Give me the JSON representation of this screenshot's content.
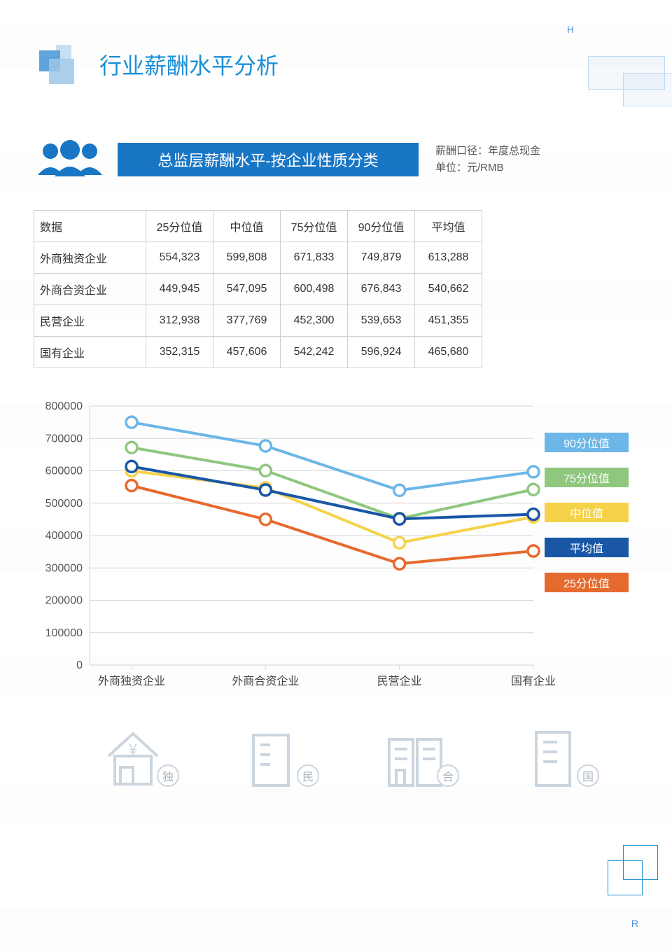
{
  "corner_top": "H",
  "corner_bottom": "R",
  "page_title": "行业薪酬水平分析",
  "subtitle": "总监层薪酬水平-按企业性质分类",
  "meta_line1": "薪酬口径：年度总现金",
  "meta_line2": "单位：元/RMB",
  "table": {
    "header": [
      "数据",
      "25分位值",
      "中位值",
      "75分位值",
      "90分位值",
      "平均值"
    ],
    "rows": [
      [
        "外商独资企业",
        "554,323",
        "599,808",
        "671,833",
        "749,879",
        "613,288"
      ],
      [
        "外商合资企业",
        "449,945",
        "547,095",
        "600,498",
        "676,843",
        "540,662"
      ],
      [
        "民营企业",
        "312,938",
        "377,769",
        "452,300",
        "539,653",
        "451,355"
      ],
      [
        "国有企业",
        "352,315",
        "457,606",
        "542,242",
        "596,924",
        "465,680"
      ]
    ]
  },
  "chart": {
    "type": "line",
    "categories": [
      "外商独资企业",
      "外商合资企业",
      "民营企业",
      "国有企业"
    ],
    "series": [
      {
        "name": "90分位值",
        "color": "#6db6e8",
        "values": [
          749879,
          676843,
          539653,
          596924
        ]
      },
      {
        "name": "75分位值",
        "color": "#8fc77e",
        "values": [
          671833,
          600498,
          452300,
          542242
        ]
      },
      {
        "name": "中位值",
        "color": "#f5d24a",
        "values": [
          599808,
          547095,
          377769,
          457606
        ]
      },
      {
        "name": "平均值",
        "color": "#1957a6",
        "values": [
          613288,
          540662,
          451355,
          465680
        ]
      },
      {
        "name": "25分位值",
        "color": "#e66a2e",
        "values": [
          554323,
          449945,
          312938,
          352315
        ]
      }
    ],
    "ylim": [
      0,
      800000
    ],
    "ytick_step": 100000,
    "line_width": 4,
    "marker_radius": 8,
    "marker_fill": "#ffffff",
    "grid_color": "#d5d5d5",
    "axis_color": "#888888",
    "background": "#ffffff",
    "label_fontsize": 16,
    "tick_fontsize": 16,
    "legend_fontsize": 16,
    "legend_text_color": "#ffffff"
  },
  "buildings": [
    {
      "tag": "独"
    },
    {
      "tag": "民"
    },
    {
      "tag": "合"
    },
    {
      "tag": "国"
    }
  ]
}
